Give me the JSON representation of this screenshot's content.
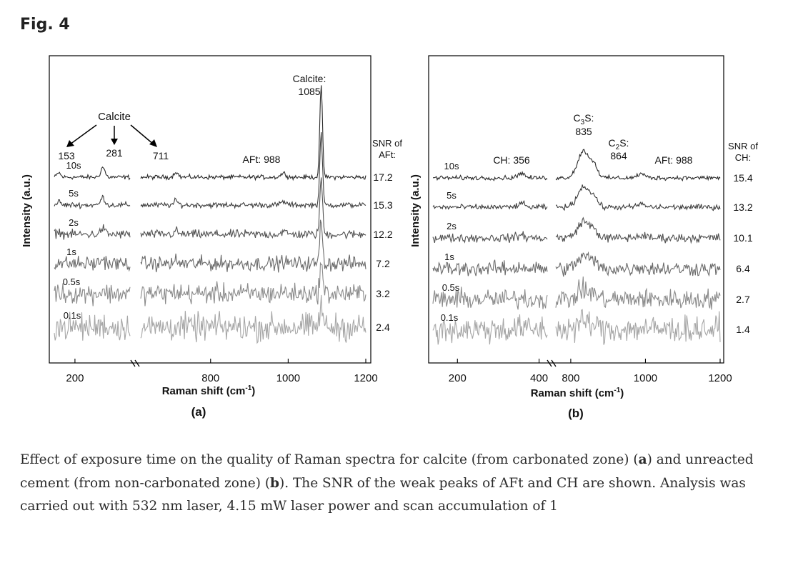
{
  "figure": {
    "label": "Fig. 4",
    "caption": {
      "t1": "Effect of exposure time on the quality of Raman spectra for calcite (from carbonated zone) (",
      "a": "a",
      "t2": ") and unreacted cement (from non-carbonated zone) (",
      "b": "b",
      "t3": "). The SNR of the weak peaks of AFt and CH are shown. Analysis was carried out with 532 nm laser, 4.15 mW laser power and scan accumulation of 1"
    }
  },
  "chart_data": [
    {
      "type": "line",
      "panel_label": "(a)",
      "xlabel": "Raman shift (cm",
      "xlabel_sup": "-1",
      "xlabel_end": ")",
      "ylabel": "Intensity (a.u.)",
      "x_segments": [
        {
          "range": [
            140,
            360
          ]
        },
        {
          "range": [
            620,
            1200
          ]
        }
      ],
      "x_ticks": [
        200,
        800,
        1000,
        1200
      ],
      "snr_header": [
        "SNR of",
        "AFt:"
      ],
      "series": [
        {
          "name": "10s",
          "snr": "17.2",
          "color": "#2a2a2a"
        },
        {
          "name": "5s",
          "snr": "15.3",
          "color": "#3c3c3c"
        },
        {
          "name": "2s",
          "snr": "12.2",
          "color": "#525252"
        },
        {
          "name": "1s",
          "snr": "7.2",
          "color": "#6a6a6a"
        },
        {
          "name": "0.5s",
          "snr": "3.2",
          "color": "#8a8a8a"
        },
        {
          "name": "0.1s",
          "snr": "2.4",
          "color": "#a6a6a6"
        }
      ],
      "peaks": [
        {
          "x": 153,
          "amp": 0.45,
          "w": 5
        },
        {
          "x": 281,
          "amp": 1.0,
          "w": 6
        },
        {
          "x": 711,
          "amp": 0.55,
          "w": 5
        },
        {
          "x": 988,
          "amp": 0.4,
          "w": 7
        },
        {
          "x": 1085,
          "amp": 9.0,
          "w": 3.5
        }
      ],
      "annotations": {
        "calcite_group": "Calcite",
        "p153": "153",
        "p281": "281",
        "p711": "711",
        "aft": "AFt: 988",
        "calcite_main": "Calcite:",
        "calcite_main_value": "1085"
      }
    },
    {
      "type": "line",
      "panel_label": "(b)",
      "xlabel": "Raman shift (cm",
      "xlabel_sup": "-1",
      "xlabel_end": ")",
      "ylabel": "Intensity (a.u.)",
      "x_segments": [
        {
          "range": [
            140,
            420
          ]
        },
        {
          "range": [
            760,
            1200
          ]
        }
      ],
      "x_ticks": [
        200,
        400,
        800,
        1000,
        1200
      ],
      "snr_header": [
        "SNR of",
        "CH:"
      ],
      "series": [
        {
          "name": "10s",
          "snr": "15.4",
          "color": "#2a2a2a"
        },
        {
          "name": "5s",
          "snr": "13.2",
          "color": "#3c3c3c"
        },
        {
          "name": "2s",
          "snr": "10.1",
          "color": "#525252"
        },
        {
          "name": "1s",
          "snr": "6.4",
          "color": "#6a6a6a"
        },
        {
          "name": "0.5s",
          "snr": "2.7",
          "color": "#8a8a8a"
        },
        {
          "name": "0.1s",
          "snr": "1.4",
          "color": "#a6a6a6"
        }
      ],
      "peaks": [
        {
          "x": 356,
          "amp": 0.5,
          "w": 8
        },
        {
          "x": 835,
          "amp": 2.7,
          "w": 16
        },
        {
          "x": 864,
          "amp": 1.0,
          "w": 9
        },
        {
          "x": 988,
          "amp": 0.4,
          "w": 10
        }
      ],
      "annotations": {
        "ch": "CH: 356",
        "c3s_a": "C",
        "c3s_sub": "3",
        "c3s_b": "S:",
        "c3s_value": "835",
        "c2s_a": "C",
        "c2s_sub": "2",
        "c2s_b": "S:",
        "c2s_value": "864",
        "aft": "AFt: 988"
      }
    }
  ]
}
